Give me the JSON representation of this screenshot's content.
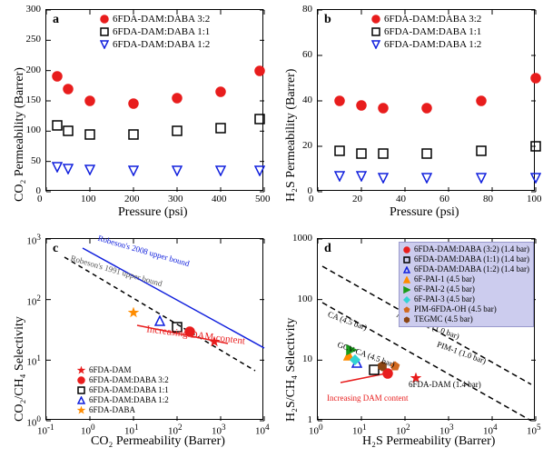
{
  "colors": {
    "red": "#e81d1d",
    "black": "#000000",
    "blue": "#1120dd",
    "orange": "#ff8c00",
    "green": "#1a9c1a",
    "cyan": "#33d4d4",
    "darkorange": "#d2691e",
    "brown": "#8b4513",
    "grey": "#888888",
    "bg": "#ffffff",
    "legendbg": "#ccccee"
  },
  "panel_a": {
    "letter": "a",
    "x_label": "Pressure (psi)",
    "y_label": "CO₂ Permeability (Barrer)",
    "xlim": [
      0,
      500
    ],
    "ylim": [
      0,
      300
    ],
    "xticks": [
      0,
      100,
      200,
      300,
      400,
      500
    ],
    "yticks": [
      0,
      50,
      100,
      150,
      200,
      250,
      300
    ],
    "legend": [
      {
        "label": "6FDA-DAM:DABA 3:2",
        "marker": "circle-filled",
        "color": "#e81d1d"
      },
      {
        "label": "6FDA-DAM:DABA 1:1",
        "marker": "square-open",
        "color": "#000000"
      },
      {
        "label": "6FDA-DAM:DABA 1:2",
        "marker": "tri-down-open",
        "color": "#1120dd"
      }
    ],
    "series": [
      {
        "marker": "circle-filled",
        "color": "#e81d1d",
        "points": [
          [
            25,
            190
          ],
          [
            50,
            170
          ],
          [
            100,
            150
          ],
          [
            200,
            145
          ],
          [
            300,
            155
          ],
          [
            400,
            165
          ],
          [
            490,
            200
          ]
        ]
      },
      {
        "marker": "square-open",
        "color": "#000000",
        "points": [
          [
            25,
            110
          ],
          [
            50,
            100
          ],
          [
            100,
            95
          ],
          [
            200,
            95
          ],
          [
            300,
            100
          ],
          [
            400,
            105
          ],
          [
            490,
            120
          ]
        ]
      },
      {
        "marker": "tri-down-open",
        "color": "#1120dd",
        "points": [
          [
            25,
            40
          ],
          [
            50,
            38
          ],
          [
            100,
            36
          ],
          [
            200,
            35
          ],
          [
            300,
            35
          ],
          [
            400,
            35
          ],
          [
            490,
            35
          ]
        ]
      }
    ]
  },
  "panel_b": {
    "letter": "b",
    "x_label": "Pressure (psi)",
    "y_label": "H₂S Permeability (Barrer)",
    "xlim": [
      0,
      100
    ],
    "ylim": [
      0,
      80
    ],
    "xticks": [
      0,
      20,
      40,
      60,
      80,
      100
    ],
    "yticks": [
      0,
      20,
      40,
      60,
      80
    ],
    "legend": [
      {
        "label": "6FDA-DAM:DABA 3:2",
        "marker": "circle-filled",
        "color": "#e81d1d"
      },
      {
        "label": "6FDA-DAM:DABA 1:1",
        "marker": "square-open",
        "color": "#000000"
      },
      {
        "label": "6FDA-DAM:DABA 1:2",
        "marker": "tri-down-open",
        "color": "#1120dd"
      }
    ],
    "series": [
      {
        "marker": "circle-filled",
        "color": "#e81d1d",
        "points": [
          [
            10,
            40
          ],
          [
            20,
            38
          ],
          [
            30,
            37
          ],
          [
            50,
            37
          ],
          [
            75,
            40
          ],
          [
            100,
            50
          ]
        ]
      },
      {
        "marker": "square-open",
        "color": "#000000",
        "points": [
          [
            10,
            18
          ],
          [
            20,
            17
          ],
          [
            30,
            17
          ],
          [
            50,
            17
          ],
          [
            75,
            18
          ],
          [
            100,
            20
          ]
        ]
      },
      {
        "marker": "tri-down-open",
        "color": "#1120dd",
        "points": [
          [
            10,
            7
          ],
          [
            20,
            7
          ],
          [
            30,
            6
          ],
          [
            50,
            6
          ],
          [
            75,
            6
          ],
          [
            100,
            6
          ]
        ]
      }
    ]
  },
  "panel_c": {
    "letter": "c",
    "x_label": "CO₂ Permeability (Barrer)",
    "y_label": "CO₂/CH₄ Selectivity",
    "xlim_exp": [
      -1,
      4
    ],
    "ylim_exp": [
      0,
      3
    ],
    "legend": [
      {
        "label": "6FDA-DAM",
        "marker": "star-filled",
        "color": "#e81d1d"
      },
      {
        "label": "6FDA-DAM:DABA 3:2",
        "marker": "circle-filled",
        "color": "#e81d1d"
      },
      {
        "label": "6FDA-DAM:DABA 1:1",
        "marker": "square-open",
        "color": "#000000"
      },
      {
        "label": "6FDA-DAM:DABA 1:2",
        "marker": "tri-up-open",
        "color": "#1120dd"
      },
      {
        "label": "6FDA-DABA",
        "marker": "star-filled",
        "color": "#ff8c00"
      }
    ],
    "points": [
      {
        "x": 700,
        "y": 20,
        "marker": "star-filled",
        "color": "#e81d1d"
      },
      {
        "x": 200,
        "y": 30,
        "marker": "circle-filled",
        "color": "#e81d1d"
      },
      {
        "x": 100,
        "y": 35,
        "marker": "square-open",
        "color": "#000000"
      },
      {
        "x": 40,
        "y": 45,
        "marker": "tri-up-open",
        "color": "#1120dd"
      },
      {
        "x": 10,
        "y": 60,
        "marker": "star-filled",
        "color": "#ff8c00"
      }
    ],
    "annotations": {
      "upper_2008": "Robeson's 2008 upper bound",
      "upper_1991": "Robeson's 1991 upper bound",
      "dam": "Increasing DAM content"
    }
  },
  "panel_d": {
    "letter": "d",
    "x_label": "H₂S Permeability (Barrer)",
    "y_label": "H₂S/CH₄ Selectivity",
    "xlim_exp": [
      0,
      5
    ],
    "ylim_exp": [
      0,
      3
    ],
    "y_ticks": [
      1,
      10,
      100,
      1000
    ],
    "legend": [
      {
        "label": "6FDA-DAM:DABA (3:2) (1.4 bar)",
        "marker": "circle-filled",
        "color": "#e81d1d"
      },
      {
        "label": "6FDA-DAM:DABA (1:1) (1.4 bar)",
        "marker": "square-open",
        "color": "#000000"
      },
      {
        "label": "6FDA-DAM:DABA (1:2) (1.4 bar)",
        "marker": "tri-up-open",
        "color": "#1120dd"
      },
      {
        "label": "6F-PAI-1            (4.5 bar)",
        "marker": "tri-up-filled",
        "color": "#ff8c00"
      },
      {
        "label": "6F-PAI-2            (4.5 bar)",
        "marker": "tri-right-filled",
        "color": "#1a9c1a"
      },
      {
        "label": "6F-PAI-3            (4.5 bar)",
        "marker": "diamond-filled",
        "color": "#33d4d4"
      },
      {
        "label": "PIM-6FDA-OH    (4.5 bar)",
        "marker": "pentagon-filled",
        "color": "#d2691e"
      },
      {
        "label": "TEGMC               (4.5 bar)",
        "marker": "hex-filled",
        "color": "#8b4513"
      }
    ],
    "points": [
      {
        "x": 40,
        "y": 6,
        "marker": "circle-filled",
        "color": "#e81d1d"
      },
      {
        "x": 20,
        "y": 7,
        "marker": "square-open",
        "color": "#000000"
      },
      {
        "x": 8,
        "y": 9,
        "marker": "tri-up-open",
        "color": "#1120dd"
      },
      {
        "x": 5,
        "y": 12,
        "marker": "tri-up-filled",
        "color": "#ff8c00"
      },
      {
        "x": 6,
        "y": 15,
        "marker": "tri-right-filled",
        "color": "#1a9c1a"
      },
      {
        "x": 7,
        "y": 10,
        "marker": "diamond-filled",
        "color": "#33d4d4"
      },
      {
        "x": 60,
        "y": 8,
        "marker": "pentagon-filled",
        "color": "#d2691e"
      },
      {
        "x": 30,
        "y": 8,
        "marker": "hex-filled",
        "color": "#8b4513"
      },
      {
        "x": 180,
        "y": 5,
        "marker": "star-filled",
        "color": "#e81d1d"
      }
    ],
    "annotations": {
      "ca": "CA (4.5 bar)",
      "ao_pim": "AO-PIM-1 (1.0 bar)",
      "gcv": "GCV-CA (4.5 bar)",
      "pim1": "PIM-1 (1.0 bar)",
      "sixfda": "6FDA-DAM (1.4 bar)",
      "dam": "Increasing DAM content"
    }
  }
}
